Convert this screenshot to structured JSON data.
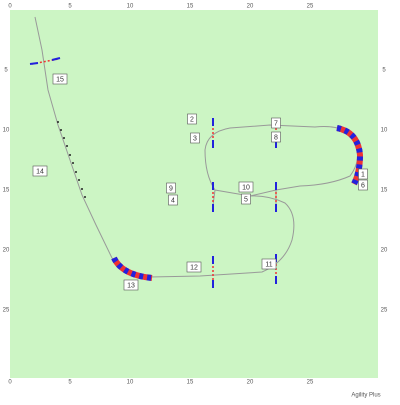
{
  "axes": {
    "top": [
      0,
      5,
      10,
      15,
      20,
      25
    ],
    "bottom": [
      0,
      5,
      10,
      15,
      20,
      25
    ],
    "left": [
      5,
      10,
      15,
      20,
      25
    ],
    "right": [
      5,
      10,
      15,
      20,
      25
    ]
  },
  "footer": "Agility Plus",
  "obstacles": [
    {
      "label": "1"
    },
    {
      "label": "2"
    },
    {
      "label": "3"
    },
    {
      "label": "4"
    },
    {
      "label": "5"
    },
    {
      "label": "6"
    },
    {
      "label": "7"
    },
    {
      "label": "8"
    },
    {
      "label": "9"
    },
    {
      "label": "10"
    },
    {
      "label": "11"
    },
    {
      "label": "12"
    },
    {
      "label": "13"
    },
    {
      "label": "14"
    },
    {
      "label": "15"
    }
  ]
}
